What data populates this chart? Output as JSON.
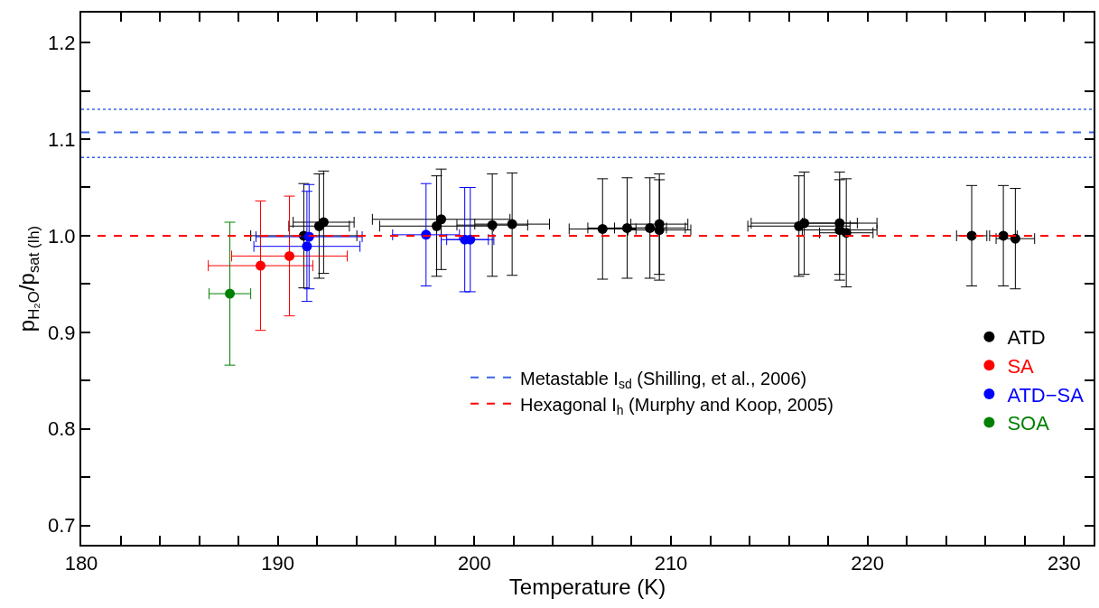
{
  "chart_data": {
    "type": "scatter",
    "xlabel": "Temperature (K)",
    "ylabel": "p$_{H₂O}$/p$_{sat (Ih)}$",
    "xlim": [
      180,
      231.5
    ],
    "ylim": [
      0.68,
      1.231
    ],
    "xticks": [
      180,
      {
        "value": 182,
        "label": null
      },
      {
        "value": 184,
        "label": null
      },
      {
        "value": 186,
        "label": null
      },
      {
        "value": 188,
        "label": null
      },
      190,
      {
        "value": 192,
        "label": null
      },
      {
        "value": 194,
        "label": null
      },
      {
        "value": 196,
        "label": null
      },
      {
        "value": 198,
        "label": null
      },
      200,
      {
        "value": 202,
        "label": null
      },
      {
        "value": 204,
        "label": null
      },
      {
        "value": 206,
        "label": null
      },
      {
        "value": 208,
        "label": null
      },
      210,
      {
        "value": 212,
        "label": null
      },
      {
        "value": 214,
        "label": null
      },
      {
        "value": 216,
        "label": null
      },
      {
        "value": 218,
        "label": null
      },
      220,
      {
        "value": 222,
        "label": null
      },
      {
        "value": 224,
        "label": null
      },
      {
        "value": 226,
        "label": null
      },
      {
        "value": 228,
        "label": null
      },
      230
    ],
    "yticks": [
      0.7,
      {
        "value": 0.75,
        "label": null
      },
      0.8,
      {
        "value": 0.85,
        "label": null
      },
      0.9,
      {
        "value": 0.95,
        "label": null
      },
      {
        "value": 1.0,
        "label": "1.0"
      },
      {
        "value": 1.05,
        "label": null
      },
      1.1,
      {
        "value": 1.15,
        "label": null
      },
      1.2
    ],
    "marker": "circle",
    "legend": "right",
    "series": [
      {
        "name": "ATD",
        "color": "#000000",
        "x": [
          191.32,
          192.1,
          192.33,
          198.08,
          198.31,
          200.91,
          201.92,
          206.52,
          207.77,
          208.93,
          209.41,
          209.41,
          216.51,
          216.78,
          218.58,
          218.58,
          218.92,
          225.3,
          226.91,
          227.52
        ],
        "values": [
          1.0,
          1.01,
          1.014,
          1.01,
          1.017,
          1.011,
          1.012,
          1.007,
          1.008,
          1.008,
          1.012,
          1.006,
          1.01,
          1.013,
          1.013,
          1.006,
          1.003,
          1.0,
          1.0,
          0.997
        ],
        "errors": [
          0.054,
          0.054,
          0.053,
          0.052,
          0.052,
          0.053,
          0.053,
          0.052,
          0.052,
          0.052,
          0.052,
          0.052,
          0.052,
          0.053,
          0.053,
          0.052,
          0.056,
          0.052,
          0.052,
          0.052
        ],
        "xerrors": [
          2.7,
          1.54,
          1.55,
          2.9,
          3.5,
          1.8,
          1.9,
          1.7,
          2.0,
          1.8,
          1.45,
          1.6,
          2.6,
          2.7,
          1.9,
          1.9,
          1.36,
          0.77,
          0.7,
          0.98
        ]
      },
      {
        "name": "SA",
        "color": "#ff0000",
        "x": [
          189.12,
          190.59
        ],
        "values": [
          0.969,
          0.979
        ],
        "errors": [
          0.067,
          0.062
        ],
        "xerrors": [
          2.66,
          2.94
        ]
      },
      {
        "name": "ATD−SA",
        "color": "#0000ff",
        "x": [
          191.48,
          191.59,
          197.54,
          199.51,
          199.79
        ],
        "values": [
          0.989,
          0.999,
          1.001,
          0.996,
          0.996
        ],
        "errors": [
          0.057,
          0.054,
          0.053,
          0.054,
          0.054
        ],
        "xerrors": [
          2.7,
          2.7,
          1.7,
          1.2,
          1.2
        ]
      },
      {
        "name": "SOA",
        "color": "#008000",
        "x": [
          187.56
        ],
        "values": [
          0.94
        ],
        "errors": [
          0.074
        ],
        "xerrors": [
          1.06
        ]
      }
    ],
    "ref_lines": [
      {
        "axis": "y",
        "value": 1.107,
        "label": "Metastable I$_{sd}$ (Shilling, et al., 2006)",
        "color": "#3c64e6",
        "line_style": "dashed"
      },
      {
        "axis": "y",
        "value": 1.131,
        "label": null,
        "color": "#3c64e6",
        "line_style": "dotted"
      },
      {
        "axis": "y",
        "value": 1.081,
        "label": null,
        "color": "#3c64e6",
        "line_style": "dotted"
      },
      {
        "axis": "y",
        "value": 1.0,
        "label": "Hexagonal I$_{h}$ (Murphy and Koop, 2005)",
        "color": "#ff0000",
        "line_style": "dashed"
      }
    ]
  }
}
